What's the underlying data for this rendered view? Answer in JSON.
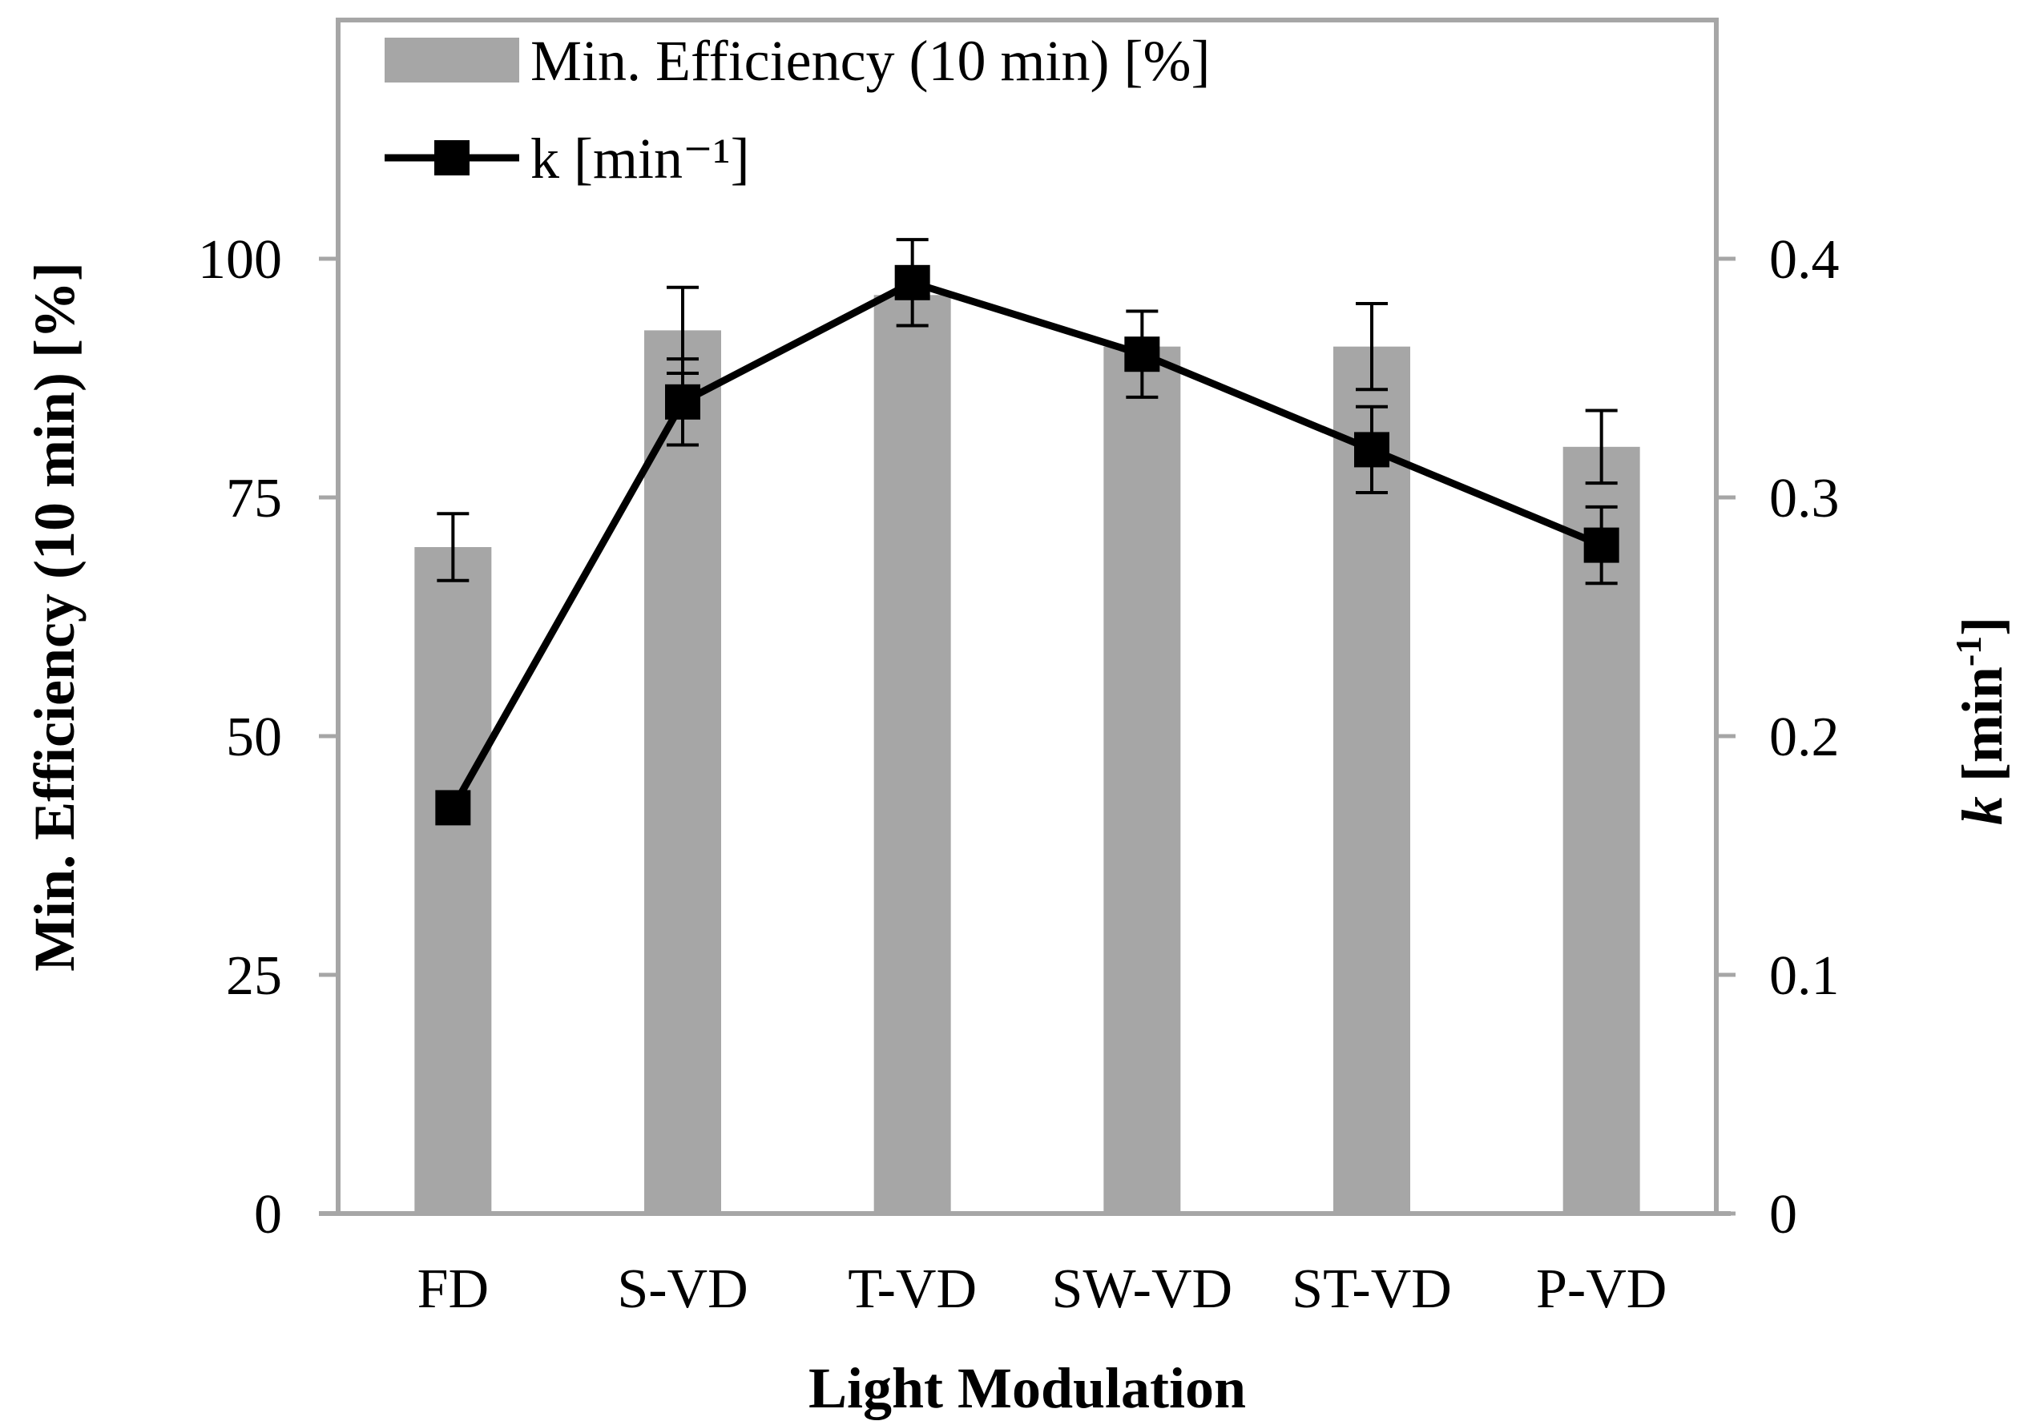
{
  "chart_data": {
    "type": "bar",
    "categories": [
      "FD",
      "S-VD",
      "T-VD",
      "SW-VD",
      "ST-VD",
      "P-VD"
    ],
    "xlabel": "Light Modulation",
    "ylabel": "Min. Efficiency  (10 min) [%]",
    "y2label": {
      "italic": "k",
      "rest": " [min",
      "sup": "-1",
      "close": "]"
    },
    "ylim": [
      0,
      125
    ],
    "y_ticks": [
      "0",
      "25",
      "50",
      "75",
      "100"
    ],
    "y2lim": [
      0,
      0.5
    ],
    "y2_ticks": [
      "0",
      "0.1",
      "0.2",
      "0.3",
      "0.4"
    ],
    "grid": false,
    "legend_position": "top-left",
    "series": [
      {
        "name": "Min. Efficiency (10 min) [%]",
        "kind": "bar",
        "axis": "left",
        "color": "#a6a6a6",
        "values": [
          69.8,
          92.5,
          96.2,
          90.8,
          90.8,
          80.3
        ],
        "error": [
          3.5,
          4.5,
          0,
          0,
          4.5,
          3.8
        ]
      },
      {
        "name": "k [min⁻¹]",
        "kind": "line",
        "axis": "right",
        "color": "#000000",
        "marker": "square",
        "values": [
          0.17,
          0.34,
          0.39,
          0.36,
          0.32,
          0.28
        ],
        "error": [
          0,
          0.018,
          0.018,
          0.018,
          0.018,
          0.016
        ]
      }
    ],
    "legend": [
      "Min. Efficiency (10 min) [%]",
      "k [min⁻¹]"
    ]
  }
}
